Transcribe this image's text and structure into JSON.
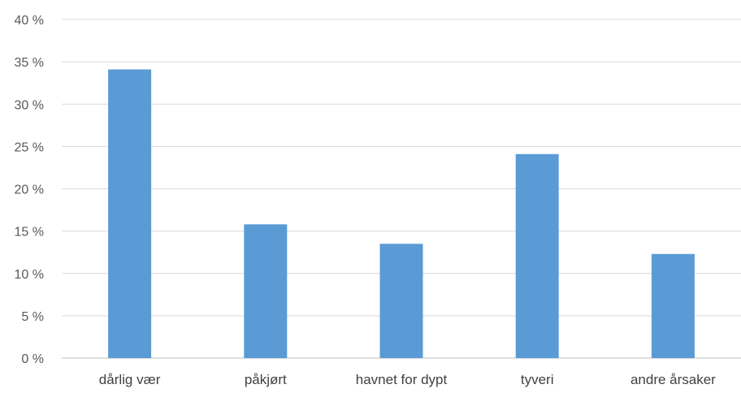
{
  "chart_data": {
    "type": "bar",
    "title": "",
    "xlabel": "",
    "ylabel": "",
    "categories": [
      "dårlig vær",
      "påkjørt",
      "havnet for dypt",
      "tyveri",
      "andre årsaker"
    ],
    "values": [
      34.1,
      15.8,
      13.5,
      24.1,
      12.3
    ],
    "ylim": [
      0,
      40
    ],
    "ytick_step": 5,
    "ytick_labels": [
      "0 %",
      "5 %",
      "10 %",
      "15 %",
      "20 %",
      "25 %",
      "30 %",
      "35 %",
      "40 %"
    ],
    "grid": true,
    "legend": "none",
    "bar_color": "#5b9bd5"
  }
}
